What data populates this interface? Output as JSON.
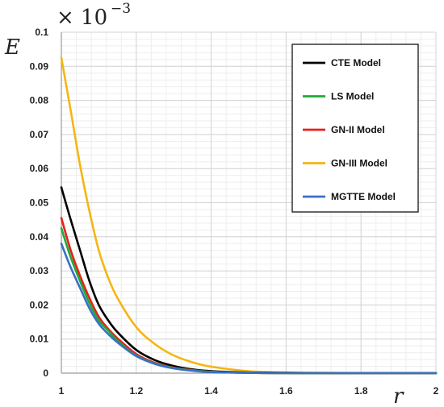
{
  "chart_data": {
    "type": "line",
    "xlabel": "r",
    "ylabel": "E",
    "y_multiplier": {
      "base": "× 10",
      "exponent": "−3"
    },
    "xlim": [
      1,
      2
    ],
    "ylim": [
      0,
      0.1
    ],
    "x_ticks": [
      1,
      1.2,
      1.4,
      1.6,
      1.8,
      2
    ],
    "x_tick_labels": [
      "1",
      "1.2",
      "1.4",
      "1.6",
      "1.8",
      "2"
    ],
    "y_ticks": [
      0,
      0.01,
      0.02,
      0.03,
      0.04,
      0.05,
      0.06,
      0.07,
      0.08,
      0.09,
      0.1
    ],
    "y_tick_labels": [
      "0",
      "0.01",
      "0.02",
      "0.03",
      "0.04",
      "0.05",
      "0.06",
      "0.07",
      "0.08",
      "0.09",
      "0.1"
    ],
    "grid": true,
    "legend_position": "top-right",
    "x": [
      1.0,
      1.025,
      1.05,
      1.075,
      1.1,
      1.125,
      1.15,
      1.2,
      1.25,
      1.3,
      1.35,
      1.4,
      1.5,
      1.6,
      1.7,
      1.8,
      2.0
    ],
    "series": [
      {
        "name": "CTE Model",
        "color": "#000000",
        "values": [
          0.0545,
          0.045,
          0.036,
          0.027,
          0.02,
          0.0155,
          0.012,
          0.0068,
          0.0038,
          0.0021,
          0.0011,
          0.0006,
          0.0002,
          0.0001,
          0.0,
          0.0,
          0.0
        ]
      },
      {
        "name": "LS Model",
        "color": "#1faa3a",
        "values": [
          0.0425,
          0.034,
          0.027,
          0.0205,
          0.0155,
          0.0125,
          0.0095,
          0.0052,
          0.0028,
          0.0015,
          0.0008,
          0.0004,
          0.0001,
          0.0,
          0.0,
          0.0,
          0.0
        ]
      },
      {
        "name": "GN-II Model",
        "color": "#e8201b",
        "values": [
          0.0455,
          0.036,
          0.0285,
          0.022,
          0.0165,
          0.013,
          0.0102,
          0.0056,
          0.003,
          0.0016,
          0.0009,
          0.0004,
          0.0001,
          0.0,
          0.0,
          0.0,
          0.0
        ]
      },
      {
        "name": "GN-III Model",
        "color": "#f5b512",
        "values": [
          0.0925,
          0.077,
          0.061,
          0.0475,
          0.036,
          0.028,
          0.022,
          0.0135,
          0.0085,
          0.0052,
          0.0032,
          0.0019,
          0.0006,
          0.0002,
          0.0001,
          0.0,
          0.0
        ]
      },
      {
        "name": "MGTTE Model",
        "color": "#3a6fc4",
        "values": [
          0.038,
          0.031,
          0.025,
          0.019,
          0.0145,
          0.0115,
          0.009,
          0.005,
          0.0027,
          0.0014,
          0.0007,
          0.0003,
          0.0001,
          0.0,
          0.0,
          0.0,
          0.0
        ]
      }
    ]
  }
}
